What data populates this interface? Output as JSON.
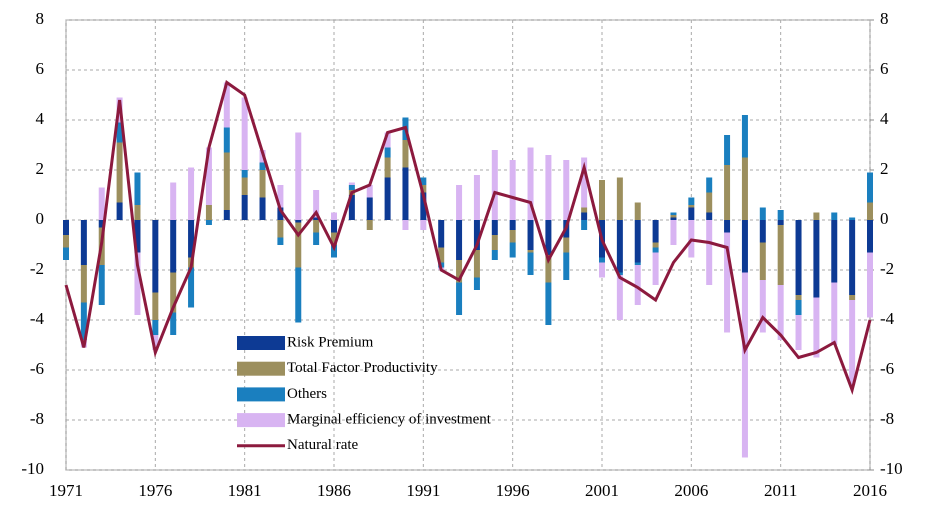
{
  "chart_data": {
    "type": "stacked-bar-line",
    "categories": [
      "1971",
      null,
      null,
      null,
      null,
      "1976",
      null,
      null,
      null,
      null,
      "1981",
      null,
      null,
      null,
      null,
      "1986",
      null,
      null,
      null,
      null,
      "1991",
      null,
      null,
      null,
      null,
      "1996",
      null,
      null,
      null,
      null,
      "2001",
      null,
      null,
      null,
      null,
      "2006",
      null,
      null,
      null,
      null,
      "2011",
      null,
      null,
      null,
      null,
      "2016"
    ],
    "series": [
      {
        "name": "Risk Premium",
        "color": "#0d3a94",
        "kind": "bar",
        "values": [
          -0.6,
          -1.8,
          -0.3,
          0.7,
          -1.3,
          -2.9,
          -2.1,
          -1.5,
          0,
          0.4,
          1.0,
          0.9,
          0.5,
          -0.1,
          0.1,
          -0.5,
          1.0,
          0.9,
          1.7,
          2.1,
          1.1,
          -1.1,
          -1.6,
          -1.2,
          -0.6,
          -0.4,
          -1.2,
          -1.4,
          -0.7,
          0.3,
          -1.5,
          -2.1,
          -1.7,
          -0.9,
          0.1,
          0.5,
          0.3,
          -0.5,
          -2.1,
          -0.9,
          -0.2,
          -3.0,
          -3.1,
          -2.5,
          -3.0,
          -1.3
        ]
      },
      {
        "name": "Total Factor Productivity",
        "color": "#9c8f5e",
        "kind": "bar",
        "values": [
          -0.5,
          -1.5,
          -1.5,
          2.4,
          0.6,
          -1.1,
          -1.6,
          -0.4,
          0.6,
          2.3,
          0.7,
          1.1,
          -0.7,
          -1.8,
          -0.5,
          -0.5,
          0.2,
          -0.4,
          0.8,
          1.1,
          0.3,
          -0.6,
          -0.9,
          -1.1,
          -0.6,
          -0.5,
          -0.1,
          -1.1,
          -0.6,
          0.2,
          1.6,
          1.7,
          0.7,
          -0.2,
          0.1,
          0.1,
          0.8,
          2.2,
          2.5,
          -1.5,
          -2.4,
          -0.2,
          0.3,
          0,
          -0.2,
          0.7
        ]
      },
      {
        "name": "Others",
        "color": "#1a7fbf",
        "kind": "bar",
        "values": [
          -0.5,
          -1.5,
          -1.6,
          0.8,
          1.3,
          -0.6,
          -0.9,
          -1.6,
          -0.2,
          1.0,
          0.3,
          0.3,
          -0.3,
          -2.2,
          -0.5,
          -0.5,
          0.2,
          0,
          0.4,
          0.9,
          0.3,
          -0.2,
          -1.3,
          -0.5,
          -0.4,
          -0.6,
          -0.9,
          -1.7,
          -1.1,
          -0.4,
          -0.2,
          -0.1,
          -0.1,
          -0.2,
          0.1,
          0.3,
          0.6,
          1.2,
          1.7,
          0.5,
          0.4,
          -0.6,
          0,
          0.3,
          0.1,
          1.2
        ]
      },
      {
        "name": "Marginal efficiency of investment",
        "color": "#d8b4f2",
        "kind": "bar",
        "values": [
          0,
          -0.3,
          1.3,
          1.0,
          -2.5,
          -0.6,
          1.5,
          2.1,
          2.3,
          1.8,
          2.9,
          0.5,
          0.9,
          3.5,
          1.1,
          0.3,
          0.1,
          0.5,
          0.6,
          -0.4,
          -0.4,
          -0.1,
          1.4,
          1.8,
          2.8,
          2.4,
          2.9,
          2.6,
          2.4,
          2.0,
          -0.6,
          -1.8,
          -1.6,
          -1.3,
          -1.0,
          -1.5,
          -2.6,
          -4.0,
          -7.4,
          -2.1,
          -2.2,
          -1.4,
          -2.4,
          -2.5,
          -3.4,
          -2.6
        ]
      },
      {
        "name": "Natural rate",
        "color": "#8c1a3e",
        "kind": "line",
        "values": [
          -2.6,
          -5.1,
          -0.9,
          4.8,
          -1.8,
          -5.3,
          -3.5,
          -1.9,
          2.9,
          5.5,
          5.0,
          2.7,
          0.4,
          -0.6,
          0.3,
          -1.1,
          1.1,
          1.4,
          3.5,
          3.7,
          1.0,
          -2.0,
          -2.4,
          -1.0,
          1.1,
          0.9,
          0.7,
          -1.6,
          -0.3,
          2.1,
          -0.8,
          -2.3,
          -2.7,
          -3.2,
          -1.7,
          -0.8,
          -0.9,
          -1.1,
          -5.2,
          -3.9,
          -4.6,
          -5.5,
          -5.3,
          -4.9,
          -6.8,
          -4.0
        ]
      }
    ],
    "ylim": [
      -10,
      8
    ],
    "yticks": [
      -10,
      -8,
      -6,
      -4,
      -2,
      0,
      2,
      4,
      6,
      8
    ],
    "y2lim": [
      -10,
      8
    ],
    "y2ticks": [
      -10,
      -8,
      -6,
      -4,
      -2,
      0,
      2,
      4,
      6,
      8
    ],
    "grid": true
  }
}
